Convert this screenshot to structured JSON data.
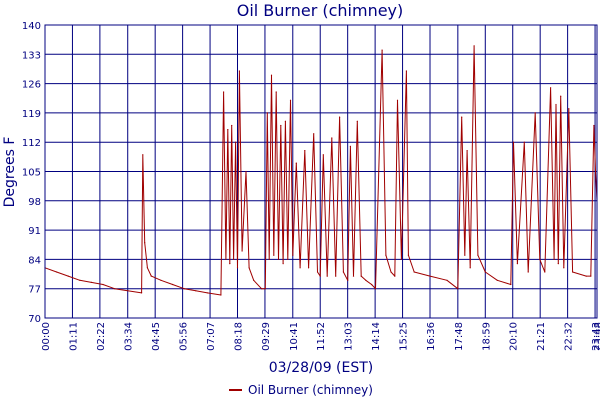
{
  "chart_data": {
    "type": "line",
    "title": "Oil Burner (chimney)",
    "xlabel": "03/28/09 (EST)",
    "ylabel": "Degrees F",
    "ylim": [
      70,
      140
    ],
    "xlim": [
      "00:00",
      "23:48"
    ],
    "y_ticks": [
      "70",
      "77",
      "84",
      "91",
      "98",
      "105",
      "112",
      "119",
      "126",
      "133",
      "140"
    ],
    "x_ticks": [
      "00:00",
      "01:11",
      "02:22",
      "03:34",
      "04:45",
      "05:56",
      "07:07",
      "08:18",
      "09:29",
      "10:41",
      "11:52",
      "13:03",
      "14:14",
      "15:25",
      "16:36",
      "17:48",
      "18:59",
      "20:10",
      "21:21",
      "22:32",
      "23:43",
      "23:48"
    ],
    "grid": true,
    "legend": "bottom-center",
    "colors": {
      "series": "#a00000",
      "grid": "#000080",
      "text": "#000080"
    },
    "series": [
      {
        "name": "Oil Burner (chimney)",
        "points": [
          [
            "00:00",
            82
          ],
          [
            "00:30",
            81
          ],
          [
            "01:00",
            80
          ],
          [
            "01:30",
            79
          ],
          [
            "02:00",
            78.5
          ],
          [
            "02:30",
            78
          ],
          [
            "03:00",
            77
          ],
          [
            "03:34",
            76.5
          ],
          [
            "04:10",
            76
          ],
          [
            "04:13",
            109
          ],
          [
            "04:18",
            88
          ],
          [
            "04:25",
            82
          ],
          [
            "04:35",
            80
          ],
          [
            "05:00",
            79
          ],
          [
            "05:30",
            78
          ],
          [
            "06:00",
            77
          ],
          [
            "06:30",
            76.5
          ],
          [
            "07:00",
            76
          ],
          [
            "07:35",
            75.5
          ],
          [
            "07:42",
            124
          ],
          [
            "07:48",
            84
          ],
          [
            "07:53",
            115
          ],
          [
            "07:58",
            83
          ],
          [
            "08:03",
            116
          ],
          [
            "08:08",
            84
          ],
          [
            "08:13",
            112
          ],
          [
            "08:18",
            82
          ],
          [
            "08:23",
            129
          ],
          [
            "08:30",
            86
          ],
          [
            "08:40",
            105
          ],
          [
            "08:48",
            82
          ],
          [
            "09:00",
            79
          ],
          [
            "09:20",
            77
          ],
          [
            "09:30",
            77
          ],
          [
            "09:35",
            119
          ],
          [
            "09:40",
            84
          ],
          [
            "09:46",
            128
          ],
          [
            "09:52",
            85
          ],
          [
            "09:58",
            124
          ],
          [
            "10:04",
            84
          ],
          [
            "10:10",
            116
          ],
          [
            "10:16",
            83
          ],
          [
            "10:22",
            117
          ],
          [
            "10:28",
            84
          ],
          [
            "10:35",
            122
          ],
          [
            "10:41",
            85
          ],
          [
            "10:50",
            107
          ],
          [
            "11:00",
            82
          ],
          [
            "11:12",
            110
          ],
          [
            "11:22",
            82
          ],
          [
            "11:35",
            114
          ],
          [
            "11:45",
            81
          ],
          [
            "11:52",
            80
          ],
          [
            "12:00",
            109
          ],
          [
            "12:10",
            80
          ],
          [
            "12:22",
            113
          ],
          [
            "12:32",
            80
          ],
          [
            "12:42",
            118
          ],
          [
            "12:52",
            81
          ],
          [
            "13:03",
            79
          ],
          [
            "13:10",
            111
          ],
          [
            "13:18",
            80
          ],
          [
            "13:28",
            117
          ],
          [
            "13:38",
            80
          ],
          [
            "13:50",
            79
          ],
          [
            "14:05",
            78
          ],
          [
            "14:15",
            77
          ],
          [
            "14:32",
            134
          ],
          [
            "14:42",
            85
          ],
          [
            "14:55",
            81
          ],
          [
            "15:05",
            80
          ],
          [
            "15:12",
            122
          ],
          [
            "15:22",
            84
          ],
          [
            "15:35",
            129
          ],
          [
            "15:40",
            85
          ],
          [
            "15:55",
            81
          ],
          [
            "16:36",
            80
          ],
          [
            "17:20",
            79
          ],
          [
            "17:48",
            77
          ],
          [
            "17:58",
            118
          ],
          [
            "18:06",
            85
          ],
          [
            "18:12",
            110
          ],
          [
            "18:20",
            82
          ],
          [
            "18:30",
            135
          ],
          [
            "18:40",
            85
          ],
          [
            "18:59",
            81
          ],
          [
            "19:30",
            79
          ],
          [
            "20:05",
            78
          ],
          [
            "20:12",
            112
          ],
          [
            "20:22",
            83
          ],
          [
            "20:40",
            112
          ],
          [
            "20:50",
            81
          ],
          [
            "21:08",
            119
          ],
          [
            "21:20",
            84
          ],
          [
            "21:33",
            81
          ],
          [
            "21:48",
            125
          ],
          [
            "21:57",
            84
          ],
          [
            "22:02",
            121
          ],
          [
            "22:08",
            83
          ],
          [
            "22:14",
            123
          ],
          [
            "22:22",
            82
          ],
          [
            "22:35",
            120
          ],
          [
            "22:45",
            81
          ],
          [
            "23:20",
            80
          ],
          [
            "23:32",
            80
          ],
          [
            "23:40",
            116
          ],
          [
            "23:44",
            105
          ],
          [
            "23:48",
            98
          ]
        ]
      }
    ]
  }
}
